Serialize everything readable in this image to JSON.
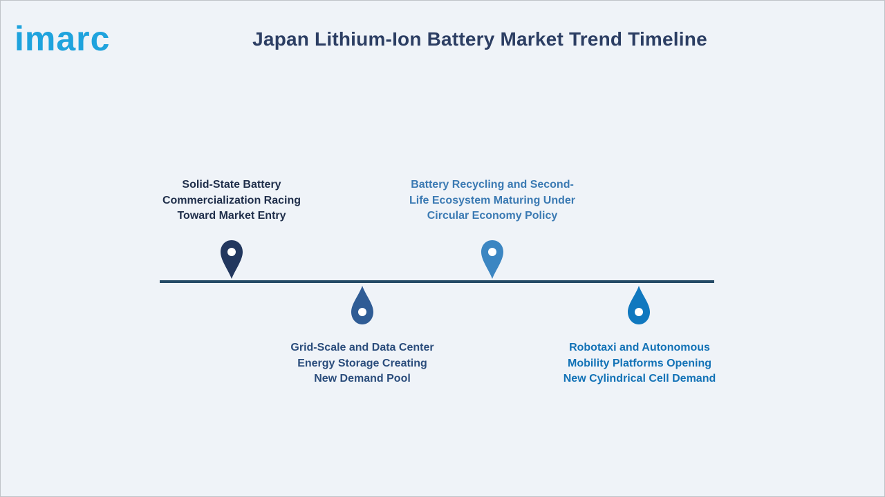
{
  "brand": {
    "logo_text": "imarc",
    "logo_color": "#1fa3dd"
  },
  "title": "Japan Lithium-Ion Battery Market Trend Timeline",
  "colors": {
    "background": "#eff3f8",
    "title": "#2c3e63",
    "timeline_line": "#244a66"
  },
  "milestones": [
    {
      "label_lines": [
        "Solid-State Battery",
        "Commercialization Racing",
        "Toward Market Entry"
      ],
      "position": "above",
      "pin_color": "#22375e",
      "text_color": "#1f2e4a",
      "icon": "map-pin-icon"
    },
    {
      "label_lines": [
        "Grid-Scale and Data Center",
        "Energy Storage Creating",
        "New Demand Pool"
      ],
      "position": "below",
      "pin_color": "#2f5c95",
      "text_color": "#2b4d7c",
      "icon": "drop-pin-icon"
    },
    {
      "label_lines": [
        "Battery Recycling and Second-",
        "Life Ecosystem Maturing Under",
        "Circular Economy Policy"
      ],
      "position": "above",
      "pin_color": "#3c86c2",
      "text_color": "#3b7ab3",
      "icon": "map-pin-icon"
    },
    {
      "label_lines": [
        "Robotaxi and Autonomous",
        "Mobility Platforms Opening",
        "New Cylindrical Cell Demand"
      ],
      "position": "below",
      "pin_color": "#1078bf",
      "text_color": "#1272b6",
      "icon": "drop-pin-icon"
    }
  ]
}
